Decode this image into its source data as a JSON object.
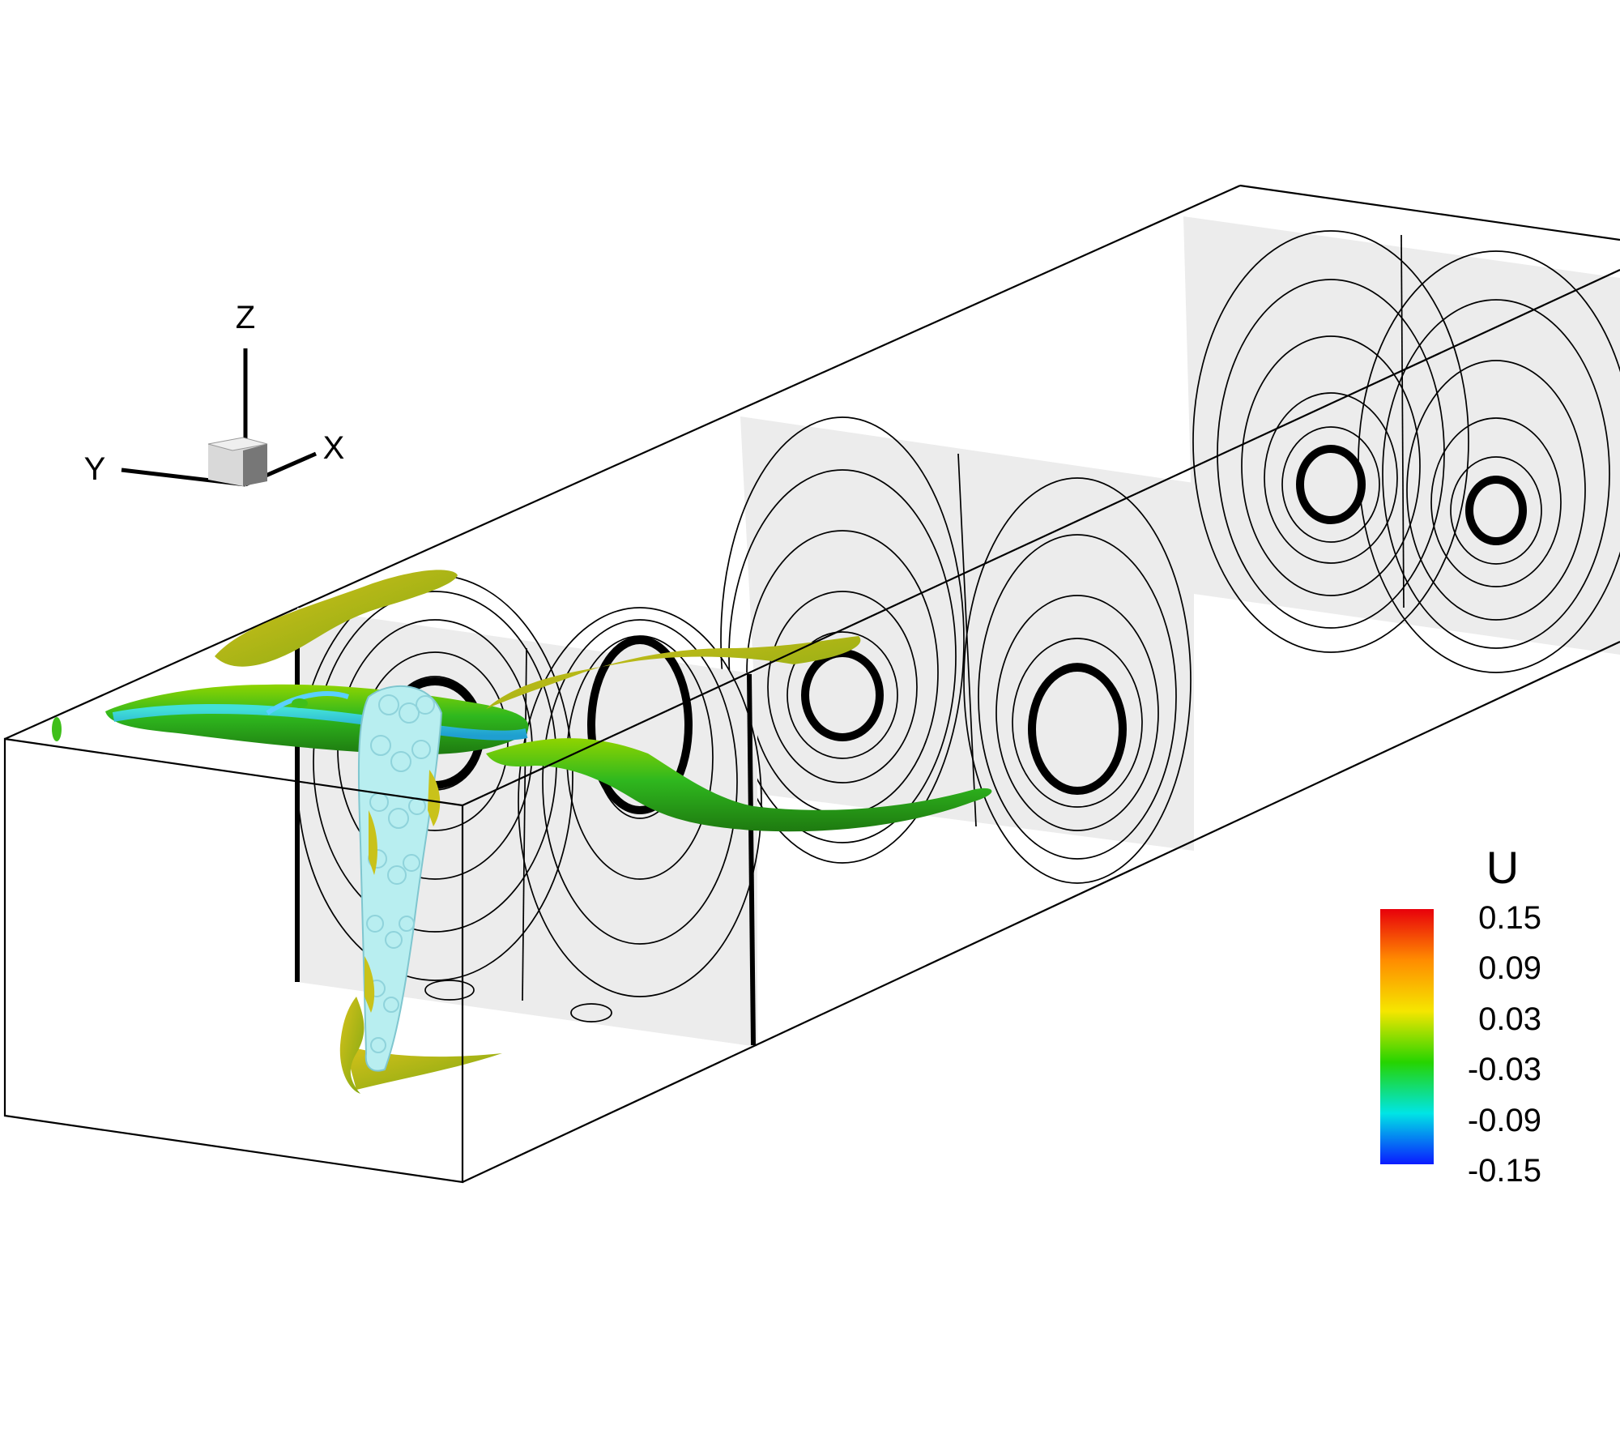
{
  "figure": {
    "axis_triad": {
      "z": "Z",
      "y": "Y",
      "x": "X"
    },
    "legend": {
      "variable": "U",
      "ticks": [
        "0.15",
        "0.09",
        "0.03",
        "-0.03",
        "-0.09",
        "-0.15"
      ],
      "colormap": [
        "#e8000b",
        "#ff8c00",
        "#f5e600",
        "#26d400",
        "#00e5e5",
        "#0a1aff"
      ]
    },
    "colors": {
      "isosurface_green": "#3fbf1a",
      "isosurface_yellow": "#c9c21a",
      "particles": "#b8eef0",
      "plane_fill": "#ececec"
    }
  }
}
